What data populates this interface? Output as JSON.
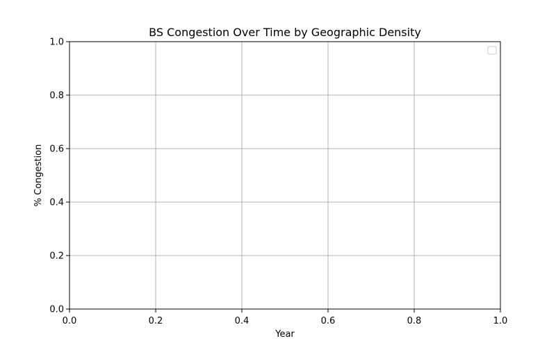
{
  "chart_data": {
    "type": "line",
    "title": "BS Congestion Over Time by Geographic Density",
    "xlabel": "Year",
    "ylabel": "% Congestion",
    "xlim": [
      0.0,
      1.0
    ],
    "ylim": [
      0.0,
      1.0
    ],
    "xticks": [
      0.0,
      0.2,
      0.4,
      0.6,
      0.8,
      1.0
    ],
    "yticks": [
      0.0,
      0.2,
      0.4,
      0.6,
      0.8,
      1.0
    ],
    "xtick_labels": [
      "0.0",
      "0.2",
      "0.4",
      "0.6",
      "0.8",
      "1.0"
    ],
    "ytick_labels": [
      "0.0",
      "0.2",
      "0.4",
      "0.6",
      "0.8",
      "1.0"
    ],
    "grid": true,
    "legend": {
      "placement": "top-right",
      "entries": []
    },
    "series": [],
    "colors": {
      "grid": "#b0b0b0",
      "axis": "#000000",
      "legend_border": "#cccccc"
    }
  }
}
